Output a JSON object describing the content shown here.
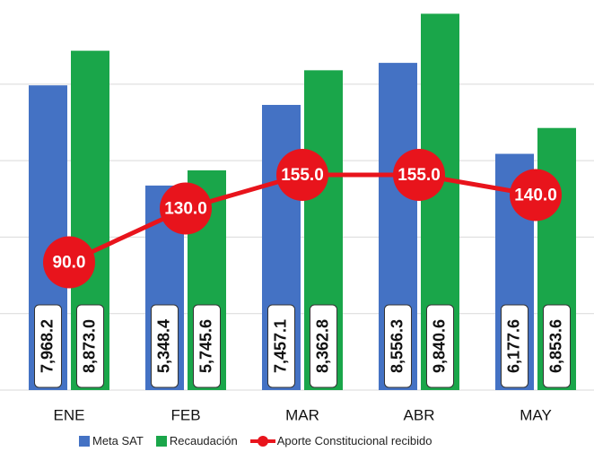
{
  "chart_data": {
    "type": "bar_line",
    "categories": [
      "ENE",
      "FEB",
      "MAR",
      "ABR",
      "MAY"
    ],
    "series": [
      {
        "name": "Meta SAT",
        "color": "#4472c4",
        "values": [
          7968.2,
          5348.4,
          7457.1,
          8556.3,
          6177.6
        ],
        "value_labels": [
          "7,968.2",
          "5,348.4",
          "7,457.1",
          "8,556.3",
          "6,177.6"
        ]
      },
      {
        "name": "Recaudación",
        "color": "#1aa64a",
        "values": [
          8873.0,
          5745.6,
          8362.8,
          9840.6,
          6853.6
        ],
        "value_labels": [
          "8,873.0",
          "5,745.6",
          "8,362.8",
          "9,840.6",
          "6,853.6"
        ]
      },
      {
        "name": "Aporte Constitucional recibido",
        "color": "#e8141c",
        "axis": "y2",
        "values": [
          90.0,
          130.0,
          155.0,
          155.0,
          140.0
        ],
        "value_labels": [
          "90.0",
          "130.0",
          "155.0",
          "155.0",
          "140.0"
        ]
      }
    ],
    "ylim": [
      0,
      10200
    ],
    "yticks": [
      0,
      2000,
      4000,
      6000,
      8000
    ],
    "y2lim": [
      -5,
      285
    ],
    "grid": true
  }
}
